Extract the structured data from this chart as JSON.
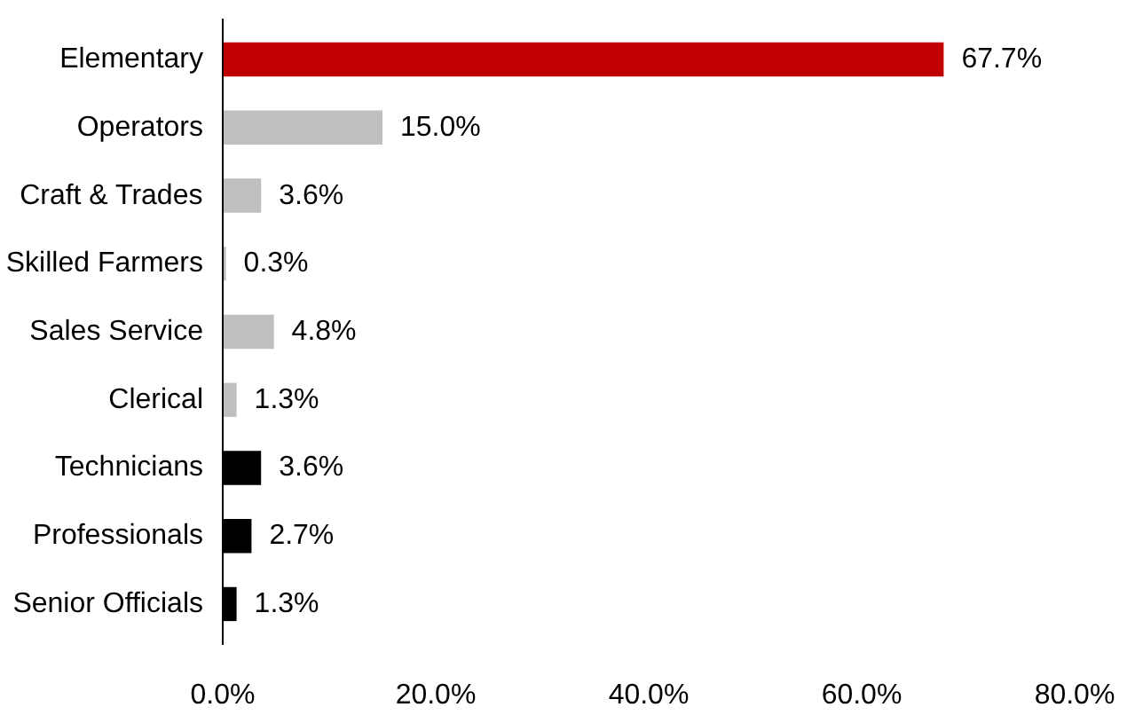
{
  "chart_data": {
    "type": "bar",
    "orientation": "horizontal",
    "categories": [
      "Elementary",
      "Operators",
      "Craft & Trades",
      "Skilled Farmers",
      "Sales Service",
      "Clerical",
      "Technicians",
      "Professionals",
      "Senior Officials"
    ],
    "values": [
      67.7,
      15.0,
      3.6,
      0.3,
      4.8,
      1.3,
      3.6,
      2.7,
      1.3
    ],
    "colors": [
      "#c00000",
      "#bfbfbf",
      "#bfbfbf",
      "#bfbfbf",
      "#bfbfbf",
      "#bfbfbf",
      "#000000",
      "#000000",
      "#000000"
    ],
    "value_labels": [
      "67.7%",
      "15.0%",
      "3.6%",
      "0.3%",
      "4.8%",
      "1.3%",
      "3.6%",
      "2.7%",
      "1.3%"
    ],
    "xlim": [
      0,
      80
    ],
    "xticks": [
      {
        "value": 0,
        "label": "0.0%"
      },
      {
        "value": 20,
        "label": "20.0%"
      },
      {
        "value": 40,
        "label": "40.0%"
      },
      {
        "value": 60,
        "label": "60.0%"
      },
      {
        "value": 80,
        "label": "80.0%"
      }
    ],
    "grid": false
  }
}
